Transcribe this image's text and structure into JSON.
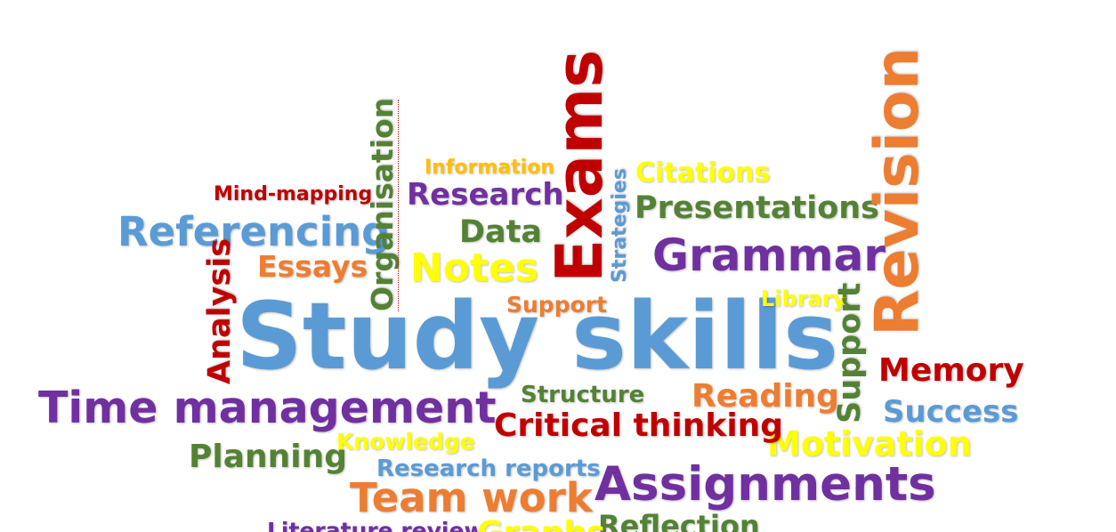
{
  "colors": {
    "blue": "#5b9bd5",
    "purple": "#7030a0",
    "red": "#c00000",
    "orange": "#ed7d31",
    "green": "#548235",
    "yellow": "#ffff00",
    "gold": "#ffc000"
  },
  "words": {
    "study_skills": "Study skills",
    "exams": "Exams",
    "revision": "Revision",
    "referencing": "Referencing",
    "time_management": "Time management",
    "grammar": "Grammar",
    "assignments": "Assignments",
    "team_work": "Team work",
    "notes": "Notes",
    "research": "Research",
    "presentations": "Presentations",
    "citations": "Citations",
    "information": "Information",
    "mind_mapping": "Mind-mapping",
    "organisation": "Organisation",
    "data": "Data",
    "essays": "Essays",
    "analysis": "Analysis",
    "strategies": "Strategies",
    "support_center": "Support",
    "support_vertical": "Support",
    "library": "Library",
    "memory": "Memory",
    "success": "Success",
    "motivation": "Motivation",
    "reading": "Reading",
    "structure": "Structure",
    "critical_thinking": "Critical thinking",
    "knowledge": "Knowledge",
    "planning": "Planning",
    "research_reports": "Research reports",
    "reflection": "Reflection",
    "literature_review": "Literature review",
    "graphs": "Graphs"
  }
}
